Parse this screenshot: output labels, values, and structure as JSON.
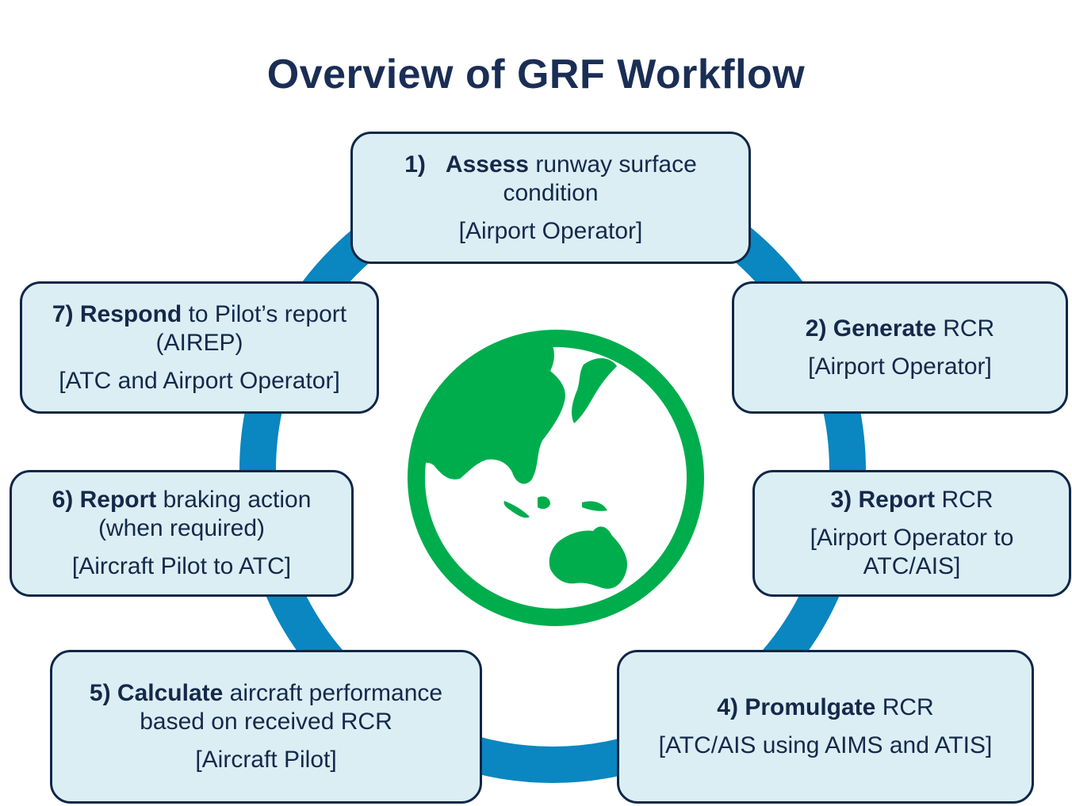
{
  "title": "Overview of GRF Workflow",
  "colors": {
    "ring": "#0a86c0",
    "box_fill": "#dbeef4",
    "box_border": "#0f2747",
    "text": "#14294a",
    "globe": "#00ad4d"
  },
  "center_icon": "globe-asia-australia-icon",
  "steps": [
    {
      "num": "1)",
      "verb": "Assess",
      "rest": "runway surface condition",
      "role": "[Airport Operator]"
    },
    {
      "num": "2)",
      "verb": "Generate",
      "rest": "RCR",
      "role": "[Airport Operator]"
    },
    {
      "num": "3)",
      "verb": "Report",
      "rest": "RCR",
      "role": "[Airport Operator to ATC/AIS]"
    },
    {
      "num": "4)",
      "verb": "Promulgate",
      "rest": "RCR",
      "role": "[ATC/AIS using AIMS and ATIS]"
    },
    {
      "num": "5)",
      "verb": "Calculate",
      "rest": "aircraft performance based on received RCR",
      "role": "[Aircraft Pilot]"
    },
    {
      "num": "6)",
      "verb": "Report",
      "rest": "braking action (when required)",
      "role": "[Aircraft Pilot to ATC]"
    },
    {
      "num": "7)",
      "verb": "Respond",
      "rest": "to Pilot’s report (AIREP)",
      "role": "[ATC and Airport Operator]"
    }
  ]
}
